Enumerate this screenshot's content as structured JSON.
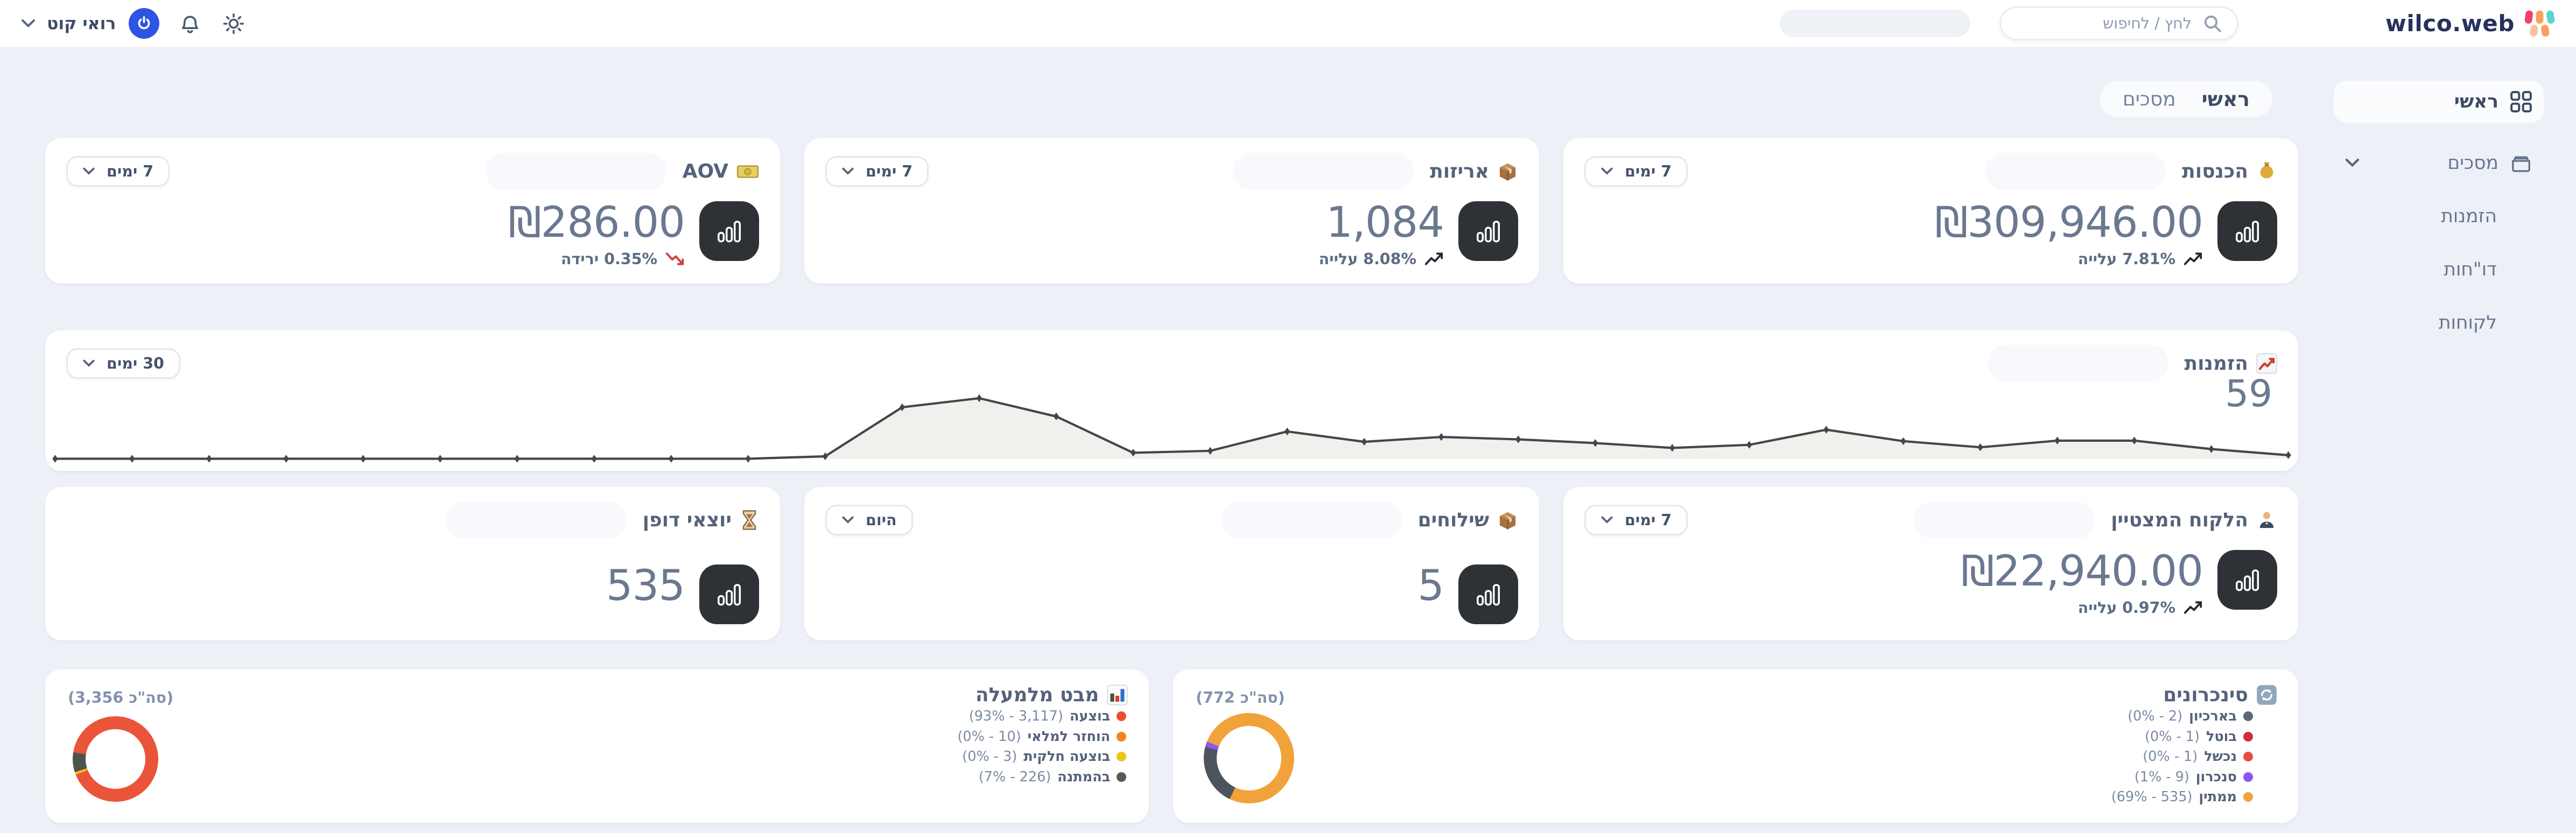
{
  "topbar": {
    "logo_text": "wilco.web",
    "search_placeholder": "לחץ / לחיפוש",
    "user_name": "רואי קוט"
  },
  "tabs": {
    "primary": "ראשי",
    "secondary": "מסכים"
  },
  "sidebar": {
    "items": [
      {
        "label": "ראשי",
        "icon": "grid-icon",
        "active": true
      },
      {
        "label": "מסכים",
        "icon": "box-icon",
        "expandable": true
      },
      {
        "label": "הזמנות"
      },
      {
        "label": "דו\"חות"
      },
      {
        "label": "לקוחות"
      }
    ]
  },
  "cards": {
    "income": {
      "title": "הכנסות",
      "icon": "money-bag-icon",
      "period": "7 ימים",
      "value": "₪309,946.00",
      "trend": "7.81% עלייה",
      "direction": "up"
    },
    "packages": {
      "title": "אריזות",
      "icon": "package-icon",
      "period": "7 ימים",
      "value": "1,084",
      "trend": "8.08% עלייה",
      "direction": "up"
    },
    "aov": {
      "title": "AOV",
      "icon": "banknote-icon",
      "period": "7 ימים",
      "value": "₪286.00",
      "trend": "0.35% ירידה",
      "direction": "down"
    },
    "orders": {
      "title": "הזמנות",
      "icon": "chart-increasing-icon",
      "period": "30 ימים",
      "value": "59"
    },
    "top_customer": {
      "title": "הלקוח המצטיין",
      "icon": "businessperson-icon",
      "period": "7 ימים",
      "value": "₪22,940.00",
      "trend": "0.97% עלייה",
      "direction": "up"
    },
    "shipments": {
      "title": "שילוחים",
      "icon": "package-icon",
      "period": "היום",
      "value": "5"
    },
    "exceptions": {
      "title": "יוצאי דופן",
      "icon": "hourglass-icon",
      "value": "535"
    },
    "syncs": {
      "title": "סינכרונים",
      "icon": "sync-icon",
      "total_label": "(772 סה\"כ)"
    },
    "overview": {
      "title": "מבט מלמעלה",
      "icon": "bar-chart-icon",
      "total_label": "(3,356 סה\"כ)"
    }
  },
  "chart_data": [
    {
      "type": "line",
      "title": "הזמנות",
      "period": "30 ימים",
      "total": 59,
      "values": [
        0,
        0,
        0,
        0,
        0,
        0,
        0,
        0,
        0,
        0,
        0.4,
        8.5,
        10,
        7,
        1,
        1.3,
        4.5,
        2.8,
        3.6,
        3.2,
        2.6,
        1.8,
        2.3,
        4.8,
        2.9,
        1.9,
        3.0,
        3.0,
        1.6,
        0.6
      ],
      "ylim": [
        0,
        10
      ],
      "line_color": "#43474b",
      "fill_color": "#f0f1ec"
    },
    {
      "type": "pie",
      "title": "סינכרונים",
      "total": 772,
      "slices": [
        {
          "label": "בארכיון",
          "value": 2,
          "pct": "0%",
          "display": "(0% - 2)",
          "color": "#5d6673"
        },
        {
          "label": "בוטל",
          "value": 1,
          "pct": "0%",
          "display": "(0% - 1)",
          "color": "#cf2c3f"
        },
        {
          "label": "נכשל",
          "value": 1,
          "pct": "0%",
          "display": "(0% - 1)",
          "color": "#ea4b42"
        },
        {
          "label": "סנכרון",
          "value": 9,
          "pct": "1%",
          "display": "(1% - 9)",
          "color": "#8a57ee"
        },
        {
          "label": "ממתין",
          "value": 535,
          "pct": "69%",
          "display": "(69% - 535)",
          "color": "#f2a23b"
        }
      ],
      "segments": [
        [
          "#f2a23b",
          0,
          57
        ],
        [
          "#4d545e",
          57,
          79
        ],
        [
          "#8a57ee",
          79,
          81
        ],
        [
          "#f2a23b",
          81,
          100
        ]
      ]
    },
    {
      "type": "pie",
      "title": "מבט מלמעלה",
      "total": 3356,
      "slices": [
        {
          "label": "בוצעה",
          "value": 3117,
          "pct": "93%",
          "display": "(93% - 3,117)",
          "color": "#ee4c31"
        },
        {
          "label": "הוחזר למלאי",
          "value": 10,
          "pct": "0%",
          "display": "(0% - 10)",
          "color": "#f58220"
        },
        {
          "label": "בוצעה חלקית",
          "value": 3,
          "pct": "0%",
          "display": "(0% - 3)",
          "color": "#efc31a"
        },
        {
          "label": "בהמתנה",
          "value": 226,
          "pct": "7%",
          "display": "(7% - 226)",
          "color": "#565b51"
        }
      ],
      "segments": [
        [
          "#e9543b",
          0,
          69
        ],
        [
          "#efc31a",
          69,
          70
        ],
        [
          "#4f544b",
          70,
          77.5
        ],
        [
          "#e9543b",
          77.5,
          100
        ]
      ]
    }
  ]
}
